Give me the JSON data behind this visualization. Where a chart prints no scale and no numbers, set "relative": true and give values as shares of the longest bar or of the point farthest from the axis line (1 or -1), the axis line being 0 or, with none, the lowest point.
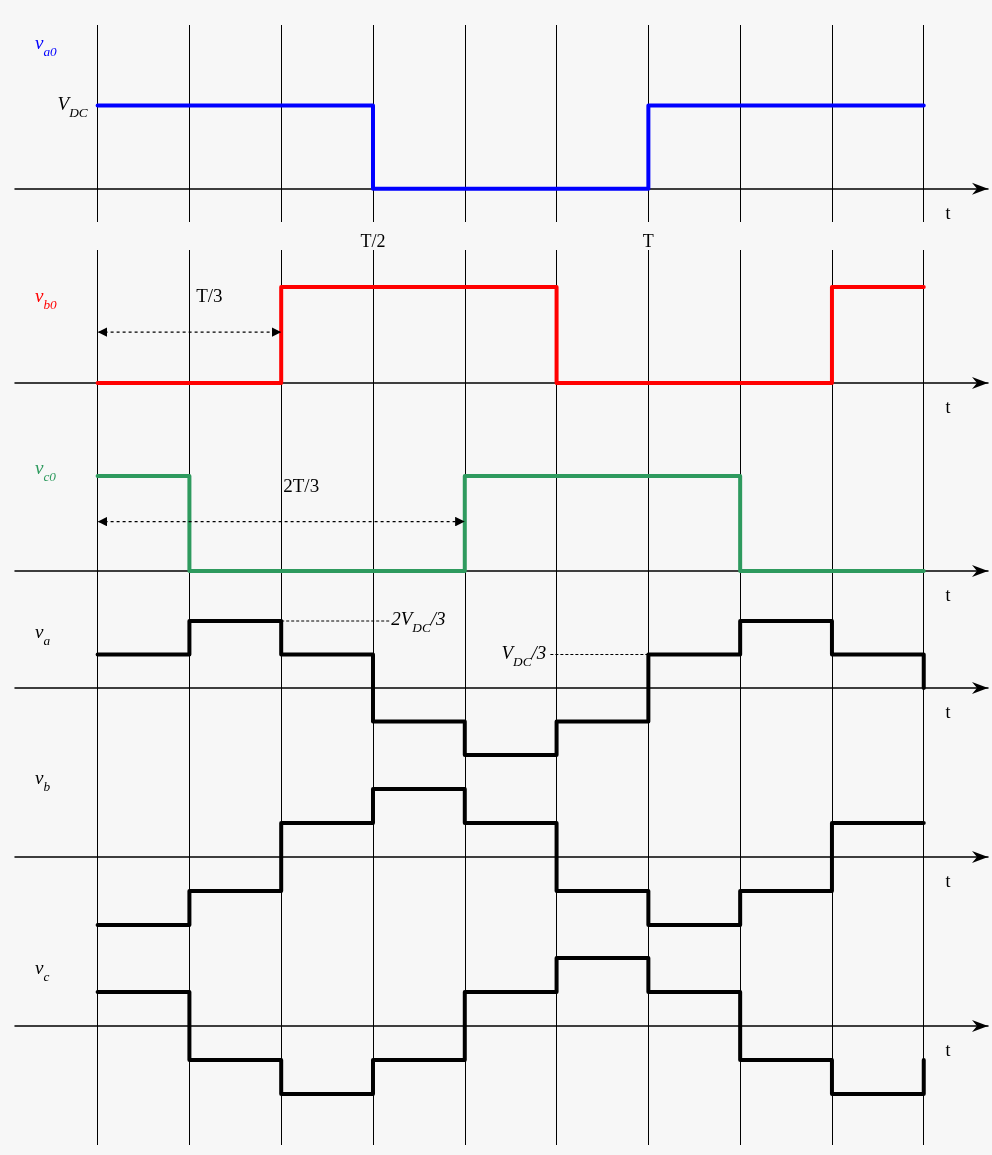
{
  "chart_data": [
    {
      "type": "step",
      "relative": true,
      "ylabel": "v$_{a0}$",
      "xlabel": "t",
      "categories": [
        null,
        null,
        null,
        "T/2",
        null,
        null,
        "T",
        null,
        null,
        null
      ],
      "tick_labels": "x",
      "grid": "x",
      "annotations": [
        "V$_{DC}$"
      ],
      "series": [
        {
          "color": "#0000ff",
          "values": [
            1,
            1,
            1,
            0,
            0,
            0,
            1,
            1,
            1,
            1
          ]
        }
      ]
    },
    {
      "type": "step",
      "relative": true,
      "ylabel": "v$_{b0}$",
      "xlabel": "t",
      "categories": [
        null,
        null,
        null,
        null,
        null,
        null,
        null,
        null,
        null,
        null
      ],
      "tick_labels": false,
      "grid": "x",
      "annotations": [
        "T/3"
      ],
      "series": [
        {
          "color": "#ff0000",
          "values": [
            0,
            0,
            1,
            1,
            1,
            0,
            0,
            0,
            1,
            1
          ]
        }
      ]
    },
    {
      "type": "step",
      "relative": true,
      "ylabel": "v$_{c0}$",
      "xlabel": "t",
      "categories": [
        null,
        null,
        null,
        null,
        null,
        null,
        null,
        null,
        null,
        null
      ],
      "tick_labels": false,
      "grid": "x",
      "annotations": [
        "2T/3"
      ],
      "series": [
        {
          "color": "#2e9a5e",
          "values": [
            1,
            0,
            0,
            0,
            1,
            1,
            1,
            0,
            0,
            0
          ]
        }
      ]
    },
    {
      "type": "step",
      "relative": true,
      "ylabel": "v$_{a}$",
      "xlabel": "t",
      "categories": [
        null,
        null,
        null,
        null,
        null,
        null,
        null,
        null,
        null,
        null
      ],
      "tick_labels": false,
      "grid": "x",
      "annotations": [
        "2V$_{DC}$/3",
        "V$_{DC}$/3"
      ],
      "series": [
        {
          "color": "#000000",
          "values": [
            0.5,
            1,
            0.5,
            -0.5,
            -1,
            -0.5,
            0.5,
            1,
            0.5,
            0
          ]
        }
      ]
    },
    {
      "type": "step",
      "relative": true,
      "ylabel": "v$_{b}$",
      "xlabel": "t",
      "categories": [
        null,
        null,
        null,
        null,
        null,
        null,
        null,
        null,
        null,
        null
      ],
      "tick_labels": false,
      "grid": "x",
      "series": [
        {
          "color": "#000000",
          "values": [
            -1,
            -0.5,
            0.5,
            1,
            0.5,
            -0.5,
            -1,
            -0.5,
            0.5,
            0.5
          ]
        }
      ]
    },
    {
      "type": "step",
      "relative": true,
      "ylabel": "v$_{c}$",
      "xlabel": "t",
      "categories": [
        null,
        null,
        null,
        null,
        null,
        null,
        null,
        null,
        null,
        null
      ],
      "tick_labels": false,
      "grid": "x",
      "series": [
        {
          "color": "#000000",
          "values": [
            0.5,
            -0.5,
            -1,
            -0.5,
            0.5,
            1,
            0.5,
            -0.5,
            -1,
            -0.5
          ]
        }
      ]
    }
  ]
}
